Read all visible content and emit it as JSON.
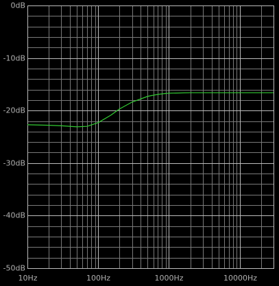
{
  "chart_data": {
    "type": "line",
    "color": "#33cc33",
    "log_x": true,
    "grid": true,
    "x": [
      10,
      20,
      30,
      50,
      70,
      100,
      150,
      200,
      300,
      500,
      700,
      1000,
      2000,
      5000,
      10000,
      30000
    ],
    "values": [
      -22.7,
      -22.8,
      -22.9,
      -23.1,
      -23.0,
      -22.3,
      -20.9,
      -19.7,
      -18.4,
      -17.3,
      -16.9,
      -16.7,
      -16.6,
      -16.6,
      -16.6,
      -16.6
    ],
    "xlim": [
      10,
      30000
    ],
    "ylim": [
      -50,
      0
    ],
    "xticks": [
      {
        "value": 10,
        "label": "10Hz"
      },
      {
        "value": 100,
        "label": "100Hz"
      },
      {
        "value": 1000,
        "label": "1000Hz"
      },
      {
        "value": 10000,
        "label": "10000Hz"
      }
    ],
    "xminorticks": [
      20,
      30,
      40,
      50,
      60,
      70,
      80,
      90,
      200,
      300,
      400,
      500,
      600,
      700,
      800,
      900,
      2000,
      3000,
      4000,
      5000,
      6000,
      7000,
      8000,
      9000,
      20000,
      30000
    ],
    "yticks": [
      {
        "value": 0,
        "label": "0dB"
      },
      {
        "value": -10,
        "label": "-10dB"
      },
      {
        "value": -20,
        "label": "-20dB"
      },
      {
        "value": -30,
        "label": "-30dB"
      },
      {
        "value": -40,
        "label": "-40dB"
      },
      {
        "value": -50,
        "label": "-50dB"
      }
    ],
    "yminorticks": [
      -2,
      -4,
      -6,
      -8,
      -12,
      -14,
      -16,
      -18,
      -22,
      -24,
      -26,
      -28,
      -32,
      -34,
      -36,
      -38,
      -42,
      -44,
      -46,
      -48
    ]
  }
}
